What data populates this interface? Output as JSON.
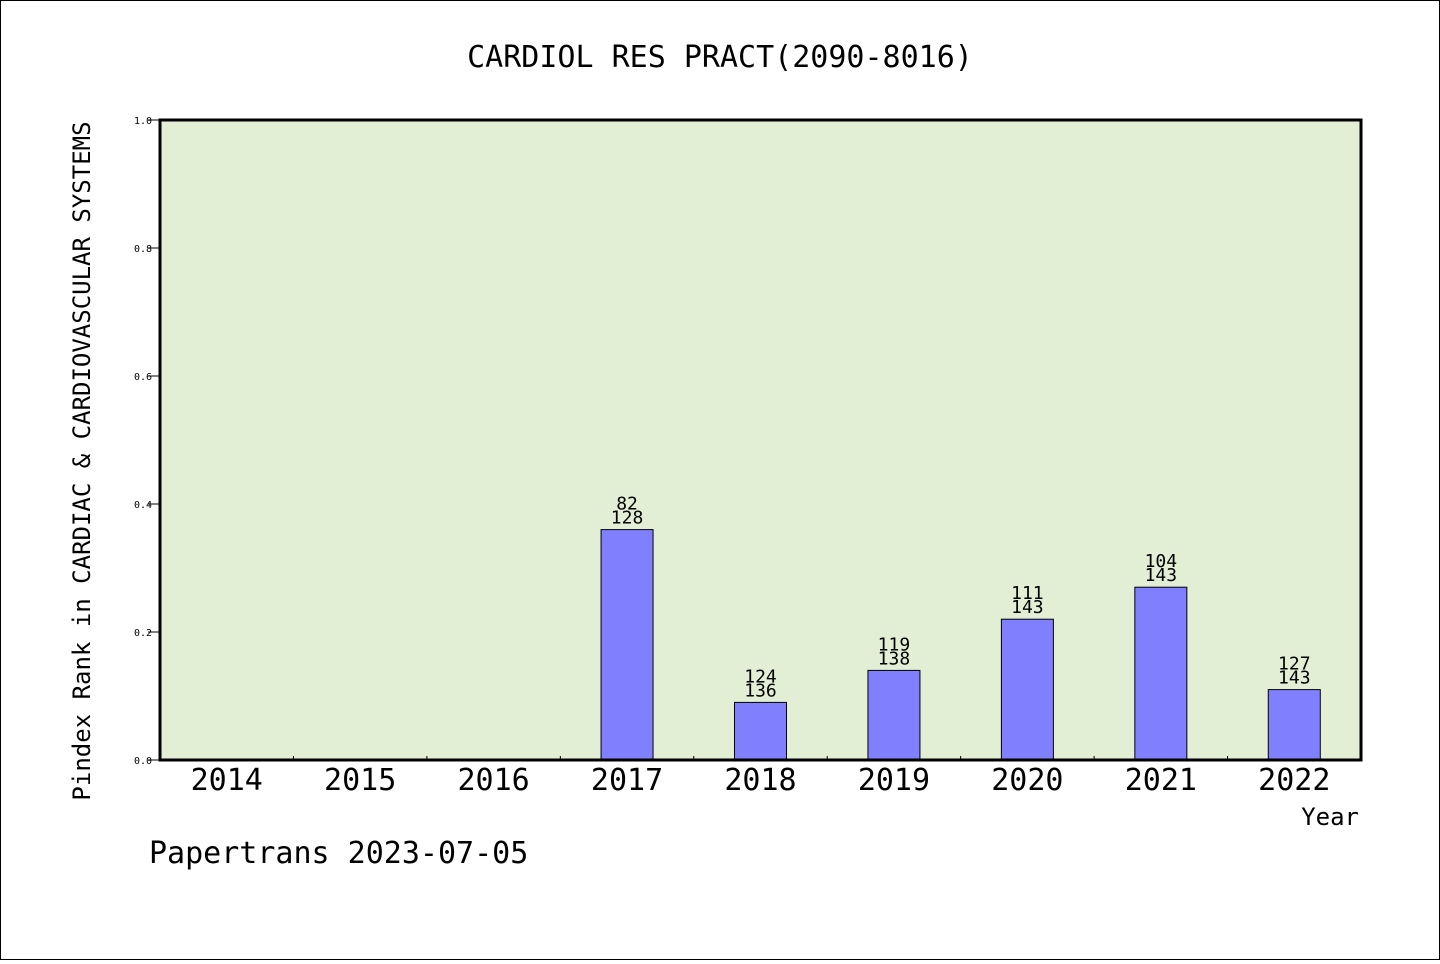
{
  "chart_data": {
    "type": "bar",
    "title": "CARDIOL RES PRACT(2090-8016)",
    "xlabel": "Year",
    "ylabel": "Pindex Rank in CARDIAC & CARDIOVASCULAR SYSTEMS",
    "ylim": [
      0,
      1.0
    ],
    "yticks": [
      "0.0",
      "0.2",
      "0.4",
      "0.6",
      "0.8",
      "1.0"
    ],
    "categories": [
      "2014",
      "2015",
      "2016",
      "2017",
      "2018",
      "2019",
      "2020",
      "2021",
      "2022"
    ],
    "values": [
      null,
      null,
      null,
      0.36,
      0.09,
      0.14,
      0.22,
      0.27,
      0.11
    ],
    "rank_labels": [
      "",
      "",
      "",
      "82",
      "124",
      "119",
      "111",
      "104",
      "127"
    ],
    "total_labels": [
      "",
      "",
      "",
      "128",
      "136",
      "138",
      "143",
      "143",
      "143"
    ],
    "grid": false,
    "colors": {
      "bar_fill": "#8080ff",
      "plot_background": "#e2efd5"
    }
  },
  "footer": {
    "text": "Papertrans 2023-07-05"
  }
}
